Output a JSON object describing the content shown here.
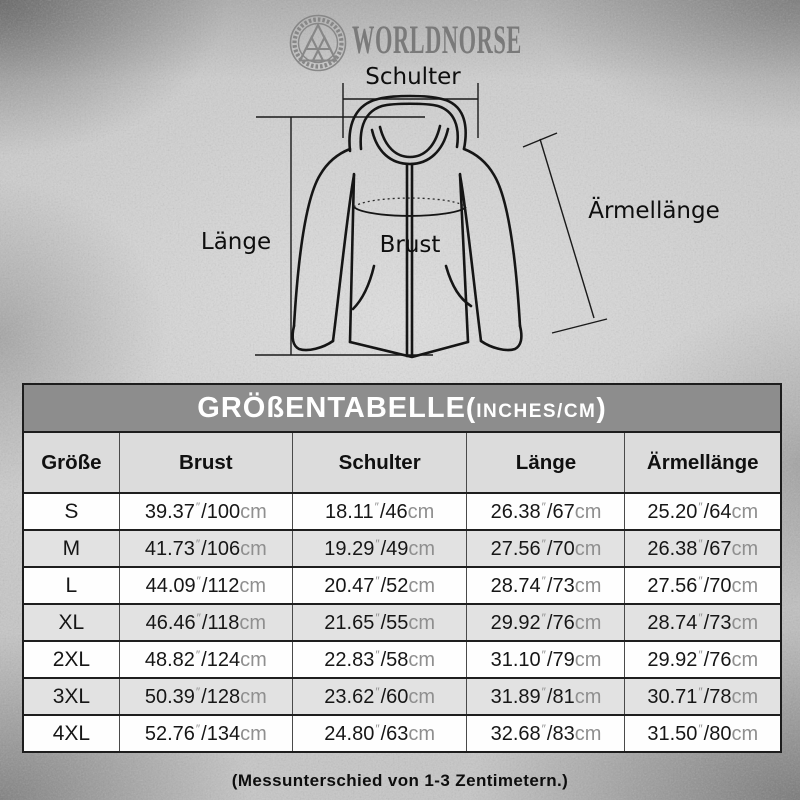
{
  "brand": {
    "name": "WORLDNORSE",
    "logo_icon": "valknut-emblem",
    "text_color": "#7a7a7a"
  },
  "diagram": {
    "schulter_label": "Schulter",
    "laenge_label": "Länge",
    "brust_label": "Brust",
    "aermellaenge_label": "Ärmellänge"
  },
  "size_table": {
    "title": "GRÖßENTABELLE",
    "open_paren": "(",
    "units_note": "INCHES/CM",
    "close_paren": ")",
    "columns": [
      "Größe",
      "Brust",
      "Schulter",
      "Länge",
      "Ärmellänge"
    ],
    "rows": [
      {
        "size": "S",
        "measurements": [
          {
            "in": "39.37",
            "cm": "100"
          },
          {
            "in": "18.11",
            "cm": "46"
          },
          {
            "in": "26.38",
            "cm": "67"
          },
          {
            "in": "25.20",
            "cm": "64"
          }
        ]
      },
      {
        "size": "M",
        "measurements": [
          {
            "in": "41.73",
            "cm": "106"
          },
          {
            "in": "19.29",
            "cm": "49"
          },
          {
            "in": "27.56",
            "cm": "70"
          },
          {
            "in": "26.38",
            "cm": "67"
          }
        ]
      },
      {
        "size": "L",
        "measurements": [
          {
            "in": "44.09",
            "cm": "112"
          },
          {
            "in": "20.47",
            "cm": "52"
          },
          {
            "in": "28.74",
            "cm": "73"
          },
          {
            "in": "27.56",
            "cm": "70"
          }
        ]
      },
      {
        "size": "XL",
        "measurements": [
          {
            "in": "46.46",
            "cm": "118"
          },
          {
            "in": "21.65",
            "cm": "55"
          },
          {
            "in": "29.92",
            "cm": "76"
          },
          {
            "in": "28.74",
            "cm": "73"
          }
        ]
      },
      {
        "size": "2XL",
        "measurements": [
          {
            "in": "48.82",
            "cm": "124"
          },
          {
            "in": "22.83",
            "cm": "58"
          },
          {
            "in": "31.10",
            "cm": "79"
          },
          {
            "in": "29.92",
            "cm": "76"
          }
        ]
      },
      {
        "size": "3XL",
        "measurements": [
          {
            "in": "50.39",
            "cm": "128"
          },
          {
            "in": "23.62",
            "cm": "60"
          },
          {
            "in": "31.89",
            "cm": "81"
          },
          {
            "in": "30.71",
            "cm": "78"
          }
        ]
      },
      {
        "size": "4XL",
        "measurements": [
          {
            "in": "52.76",
            "cm": "134"
          },
          {
            "in": "24.80",
            "cm": "63"
          },
          {
            "in": "32.68",
            "cm": "83"
          },
          {
            "in": "31.50",
            "cm": "80"
          }
        ]
      }
    ],
    "inch_mark": "″",
    "slash": "/",
    "cm_suffix": "cm",
    "colors": {
      "title_bar": "#8d8d8d",
      "header_row": "#dcdcdc",
      "row_white": "#fefefe",
      "row_alt": "#e2e2e2",
      "border": "#1e1e1e",
      "unit_text": "#8f8f8f"
    }
  },
  "footer": {
    "note": "(Messunterschied von 1-3 Zentimetern.)"
  }
}
